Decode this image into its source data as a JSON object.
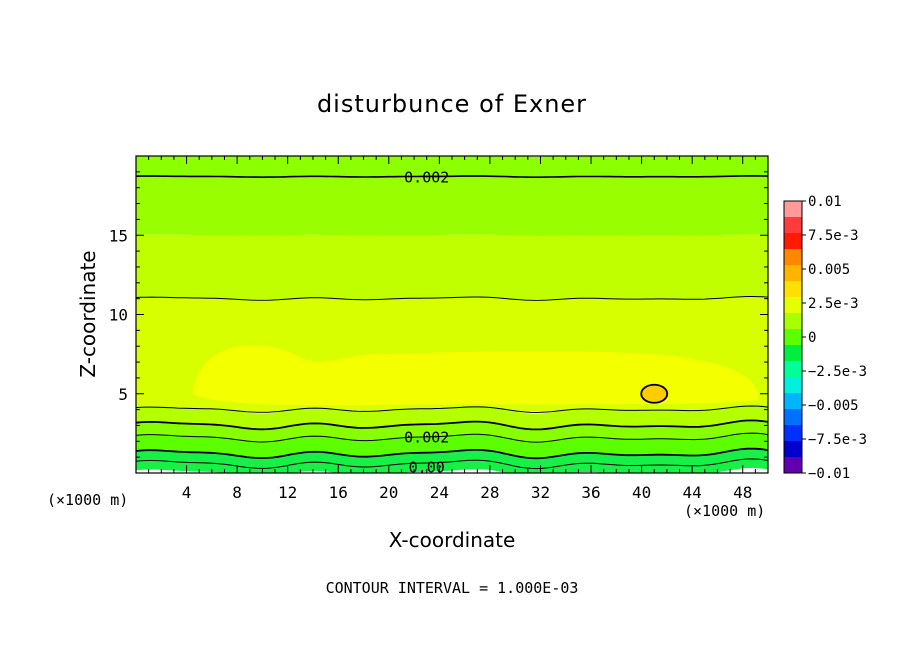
{
  "chart_data": {
    "type": "heatmap",
    "title": "disturbunce of Exner",
    "xlabel": "X-coordinate",
    "ylabel": "Z-coordinate",
    "x_unit_left": "(×1000 m)",
    "x_unit_right": "(×1000 m)",
    "xlim": [
      0,
      50
    ],
    "ylim": [
      0,
      20
    ],
    "x_ticks": [
      4,
      8,
      12,
      16,
      20,
      24,
      28,
      32,
      36,
      40,
      44,
      48
    ],
    "y_ticks": [
      5,
      10,
      15
    ],
    "footer": "CONTOUR INTERVAL = 1.000E-03",
    "colorbar": {
      "labels": [
        "0.01",
        "7.5e-3",
        "0.005",
        "2.5e-3",
        "0",
        "−2.5e-3",
        "−0.005",
        "−7.5e-3",
        "−0.01"
      ],
      "colors": [
        "#ff9a9a",
        "#ff3b3b",
        "#ff1a00",
        "#ff8800",
        "#ffb400",
        "#ffe000",
        "#e6ff00",
        "#a8ff00",
        "#5cff00",
        "#00ee40",
        "#00ff99",
        "#00f0e0",
        "#00b4ff",
        "#0070ff",
        "#0030ff",
        "#0000cc",
        "#6000b0"
      ],
      "range": [
        -0.01,
        0.01
      ]
    },
    "contour_labels": [
      {
        "text": "0.002",
        "x": 23,
        "z": 18.7
      },
      {
        "text": "0.002",
        "x": 23,
        "z": 2.3
      },
      {
        "text": "0.00",
        "x": 23,
        "z": 0.4
      }
    ],
    "bands": [
      {
        "z_from": 18.7,
        "z_to": 20.0,
        "level": 0.0017,
        "color": "#8cff00"
      },
      {
        "z_from": 15.0,
        "z_to": 18.7,
        "level": 0.0022,
        "color": "#99ff00"
      },
      {
        "z_from": 11.0,
        "z_to": 15.0,
        "level": 0.0026,
        "color": "#c0ff00"
      },
      {
        "z_from": 4.0,
        "z_to": 11.0,
        "level": 0.003,
        "color": "#d8ff00"
      },
      {
        "z_from": 4.3,
        "z_to": 8.3,
        "level": 0.0035,
        "color": "#f4ff00"
      },
      {
        "z_from": 3.0,
        "z_to": 4.0,
        "level": 0.0025,
        "color": "#b4ff00"
      },
      {
        "z_from": 2.2,
        "z_to": 3.0,
        "level": 0.0018,
        "color": "#88ff00"
      },
      {
        "z_from": 1.2,
        "z_to": 2.2,
        "level": 0.001,
        "color": "#5cff00"
      },
      {
        "z_from": 0.0,
        "z_to": 1.2,
        "level": 0.0003,
        "color": "#18f048"
      }
    ],
    "local_max": {
      "x": 41,
      "z": 5.0,
      "color": "#ffcc00"
    }
  }
}
